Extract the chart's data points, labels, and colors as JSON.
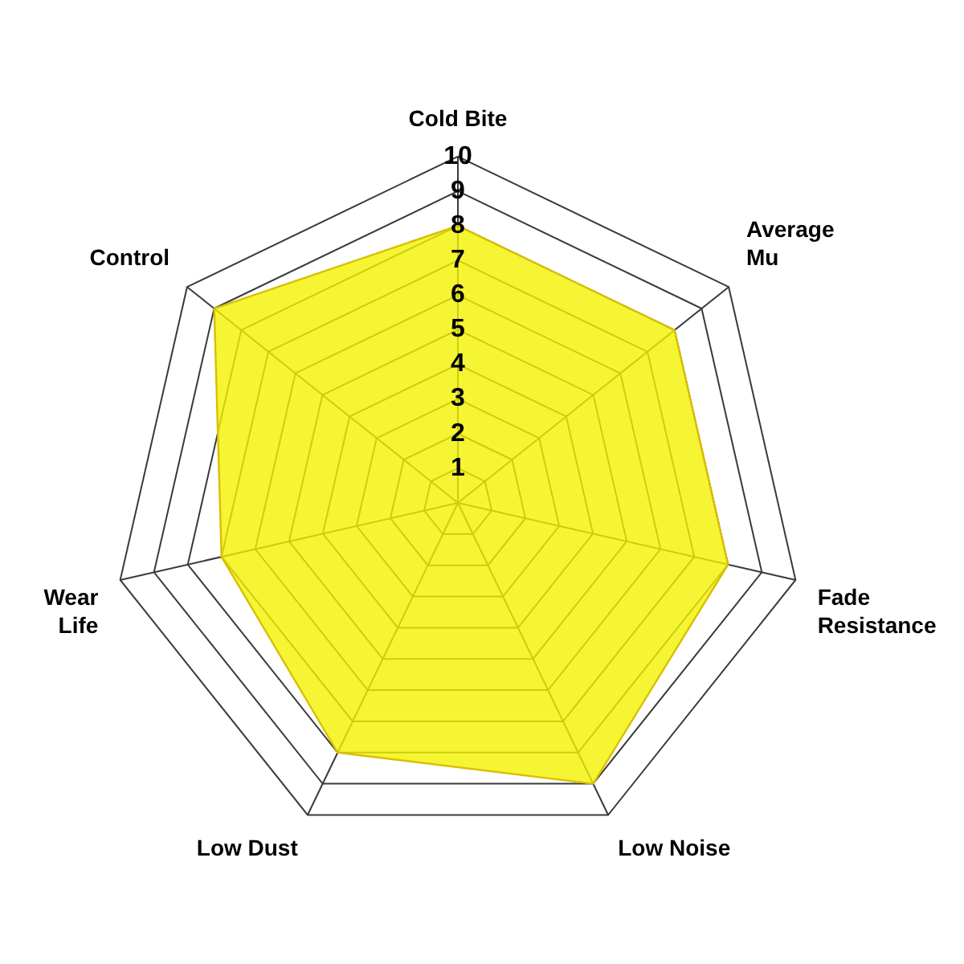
{
  "chart_data": {
    "type": "radar",
    "categories": [
      "Cold Bite",
      "Average Mu",
      "Fade Resistance",
      "Low Noise",
      "Low Dust",
      "Wear Life",
      "Control"
    ],
    "values": [
      8,
      8,
      8,
      9,
      8,
      7,
      9
    ],
    "color": "#f4f200",
    "ylim": [
      0,
      10
    ],
    "yticks": [
      1,
      2,
      3,
      4,
      5,
      6,
      7,
      8,
      9,
      10
    ],
    "grid": true
  }
}
